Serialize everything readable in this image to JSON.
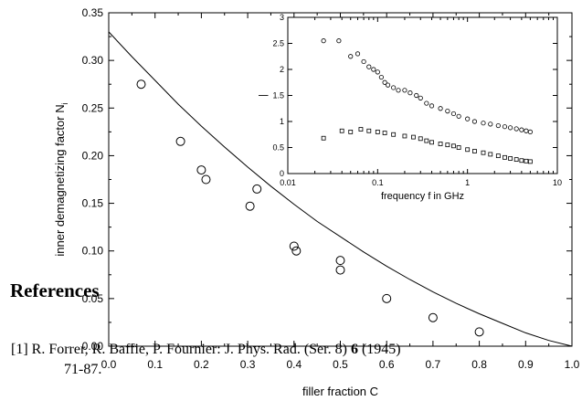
{
  "chart_data": [
    {
      "type": "scatter",
      "xlabel": "filler fraction C",
      "ylabel": "inner demagnetizing factor N",
      "ylabel_subscript": "i",
      "xlim": [
        0.0,
        1.0
      ],
      "ylim": [
        0.0,
        0.35
      ],
      "xticks": [
        "0.0",
        "0.1",
        "0.2",
        "0.3",
        "0.4",
        "0.5",
        "0.6",
        "0.7",
        "0.8",
        "0.9",
        "1.0"
      ],
      "yticks": [
        "0.00",
        "0.05",
        "0.10",
        "0.15",
        "0.20",
        "0.25",
        "0.30",
        "0.35"
      ],
      "points": [
        {
          "x": 0.07,
          "y": 0.275
        },
        {
          "x": 0.155,
          "y": 0.215
        },
        {
          "x": 0.2,
          "y": 0.185
        },
        {
          "x": 0.21,
          "y": 0.175
        },
        {
          "x": 0.305,
          "y": 0.147
        },
        {
          "x": 0.32,
          "y": 0.165
        },
        {
          "x": 0.4,
          "y": 0.105
        },
        {
          "x": 0.405,
          "y": 0.1
        },
        {
          "x": 0.5,
          "y": 0.09
        },
        {
          "x": 0.5,
          "y": 0.08
        },
        {
          "x": 0.6,
          "y": 0.05
        },
        {
          "x": 0.7,
          "y": 0.03
        },
        {
          "x": 0.8,
          "y": 0.015
        }
      ],
      "fit_curve": {
        "x": [
          0.0,
          0.05,
          0.1,
          0.15,
          0.2,
          0.25,
          0.3,
          0.35,
          0.4,
          0.45,
          0.5,
          0.55,
          0.6,
          0.65,
          0.7,
          0.75,
          0.8,
          0.85,
          0.9,
          0.95,
          1.0
        ],
        "y": [
          0.33,
          0.304,
          0.279,
          0.254,
          0.231,
          0.209,
          0.188,
          0.168,
          0.149,
          0.131,
          0.115,
          0.099,
          0.084,
          0.07,
          0.057,
          0.045,
          0.034,
          0.024,
          0.014,
          0.006,
          0.0
        ]
      }
    },
    {
      "type": "scatter",
      "role": "inset",
      "xlabel": "frequency f in GHz",
      "ylabel": "|",
      "xscale": "log",
      "xlim": [
        0.01,
        10
      ],
      "ylim": [
        0,
        3
      ],
      "xticks": [
        "0.01",
        "0.1",
        "1",
        "10"
      ],
      "yticks": [
        "0",
        "0.5",
        "1",
        "1.5",
        "2",
        "2.5",
        "3"
      ],
      "series": [
        {
          "marker": "circle",
          "x": [
            0.025,
            0.037,
            0.05,
            0.06,
            0.07,
            0.08,
            0.09,
            0.1,
            0.11,
            0.12,
            0.13,
            0.15,
            0.17,
            0.2,
            0.23,
            0.27,
            0.3,
            0.35,
            0.4,
            0.5,
            0.6,
            0.7,
            0.8,
            1.0,
            1.2,
            1.5,
            1.8,
            2.2,
            2.6,
            3.0,
            3.5,
            4.0,
            4.5,
            5.0
          ],
          "y": [
            2.55,
            2.55,
            2.25,
            2.3,
            2.15,
            2.05,
            2.0,
            1.95,
            1.85,
            1.75,
            1.7,
            1.65,
            1.6,
            1.6,
            1.55,
            1.5,
            1.45,
            1.35,
            1.3,
            1.25,
            1.2,
            1.15,
            1.1,
            1.05,
            1.0,
            0.97,
            0.95,
            0.92,
            0.9,
            0.88,
            0.86,
            0.84,
            0.82,
            0.8
          ]
        },
        {
          "marker": "square",
          "x": [
            0.025,
            0.04,
            0.05,
            0.065,
            0.08,
            0.1,
            0.12,
            0.15,
            0.2,
            0.25,
            0.3,
            0.35,
            0.4,
            0.5,
            0.6,
            0.7,
            0.8,
            1.0,
            1.2,
            1.5,
            1.8,
            2.2,
            2.6,
            3.0,
            3.5,
            4.0,
            4.5,
            5.0
          ],
          "y": [
            0.68,
            0.82,
            0.8,
            0.85,
            0.82,
            0.8,
            0.78,
            0.75,
            0.72,
            0.7,
            0.67,
            0.63,
            0.6,
            0.57,
            0.55,
            0.53,
            0.5,
            0.46,
            0.43,
            0.4,
            0.37,
            0.34,
            0.31,
            0.29,
            0.27,
            0.25,
            0.24,
            0.23
          ]
        }
      ]
    }
  ],
  "references": {
    "heading": "References",
    "line1": "[1] R. Forrer, R. Baffie, P. Fournier: J. Phys. Rad. (Ser. 8)",
    "volume": "6",
    "year": "(1945)",
    "line2": "71-87."
  }
}
